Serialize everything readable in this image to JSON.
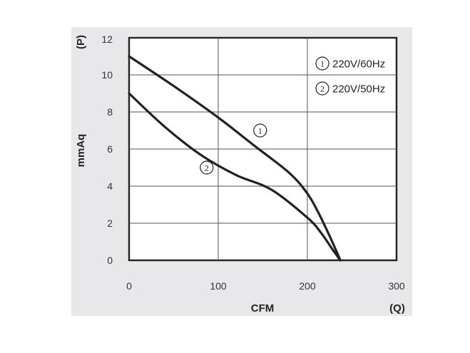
{
  "chart_data": {
    "type": "line",
    "xlabel": "CFM",
    "x_unit": "(Q)",
    "ylabel": "mmAq",
    "y_unit": "(P)",
    "xlim": [
      0,
      300
    ],
    "ylim": [
      0,
      12
    ],
    "x_ticks": [
      "0",
      "100",
      "200",
      "300"
    ],
    "y_ticks": [
      "0",
      "2",
      "4",
      "6",
      "8",
      "10",
      "12"
    ],
    "grid": true,
    "legend_position": "top-right",
    "series": [
      {
        "marker": "1",
        "name": "220V/60Hz",
        "x": [
          0,
          50,
          100,
          140,
          180,
          200,
          212,
          225,
          237
        ],
        "y": [
          11.0,
          9.4,
          7.7,
          6.2,
          4.7,
          3.6,
          2.6,
          1.3,
          0.0
        ]
      },
      {
        "marker": "2",
        "name": "220V/50Hz",
        "x": [
          0,
          40,
          80,
          120,
          160,
          200,
          215,
          228,
          237
        ],
        "y": [
          9.0,
          7.2,
          5.7,
          4.6,
          3.8,
          2.3,
          1.5,
          0.6,
          0.0
        ]
      }
    ],
    "annotations": [
      {
        "label": "1",
        "x": 135,
        "y": 7.0
      },
      {
        "label": "2",
        "x": 75,
        "y": 5.0
      }
    ]
  }
}
